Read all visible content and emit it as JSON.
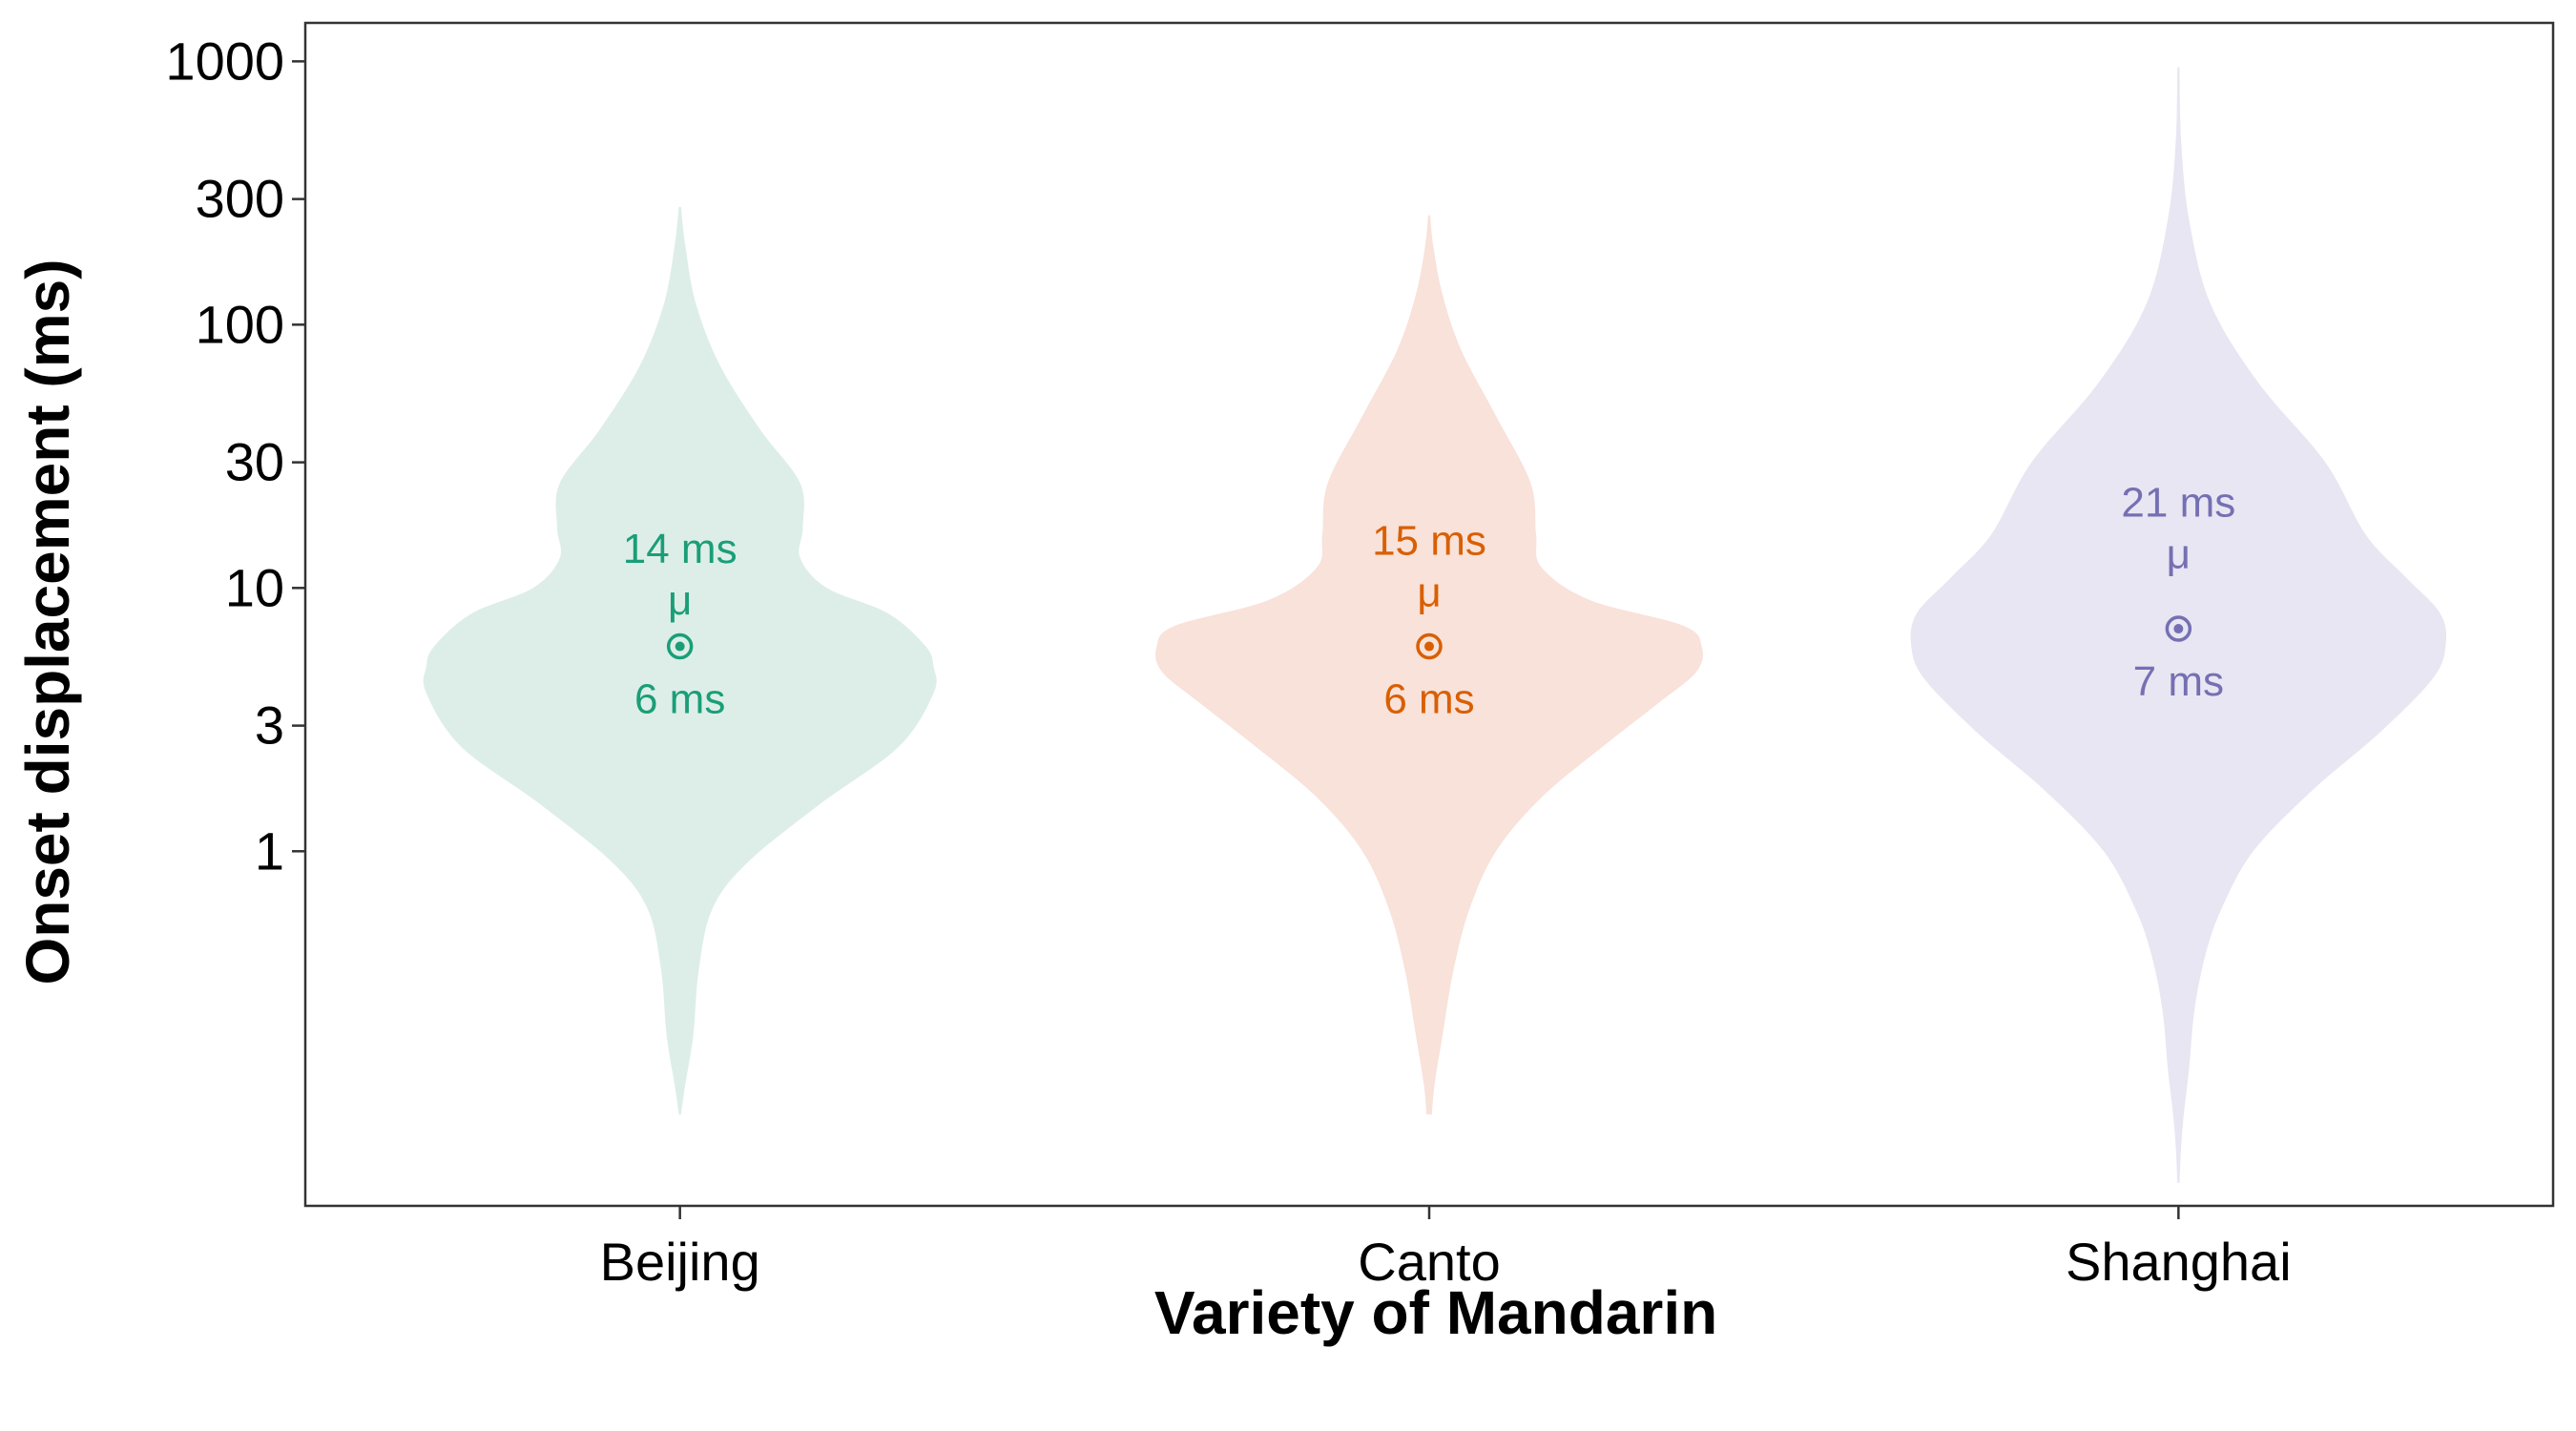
{
  "chart_data": {
    "type": "violin",
    "title": "",
    "xlabel": "Variety of Mandarin",
    "ylabel": "Onset displacement (ms)",
    "y_scale": "log",
    "ylim": [
      0.045,
      1400
    ],
    "y_ticks": [
      1,
      3,
      10,
      30,
      100,
      300,
      1000
    ],
    "y_tick_labels": [
      "1",
      "3",
      "10",
      "30",
      "100",
      "300",
      "1000"
    ],
    "grid": false,
    "legend": "none",
    "categories": [
      "Beijing",
      "Canto",
      "Shanghai"
    ],
    "series": [
      {
        "category": "Beijing",
        "color": "#1b9e77",
        "fill": "#ddeee8",
        "median": 6,
        "mean": 14,
        "median_label": "6 ms",
        "mean_label": "14 ms",
        "mean_symbol": "μ",
        "profile": [
          [
            0.1,
            0.0
          ],
          [
            0.13,
            0.02
          ],
          [
            0.2,
            0.05
          ],
          [
            0.35,
            0.07
          ],
          [
            0.6,
            0.12
          ],
          [
            0.9,
            0.25
          ],
          [
            1.5,
            0.52
          ],
          [
            2.5,
            0.82
          ],
          [
            4,
            0.95
          ],
          [
            5,
            0.95
          ],
          [
            6,
            0.92
          ],
          [
            8,
            0.78
          ],
          [
            10,
            0.55
          ],
          [
            13,
            0.45
          ],
          [
            17,
            0.46
          ],
          [
            25,
            0.45
          ],
          [
            40,
            0.3
          ],
          [
            70,
            0.15
          ],
          [
            120,
            0.06
          ],
          [
            200,
            0.02
          ],
          [
            280,
            0.0
          ]
        ]
      },
      {
        "category": "Canto",
        "color": "#d95f02",
        "fill": "#f8e2d9",
        "median": 6,
        "mean": 15,
        "median_label": "6 ms",
        "mean_label": "15 ms",
        "mean_symbol": "μ",
        "profile": [
          [
            0.1,
            0.01
          ],
          [
            0.13,
            0.02
          ],
          [
            0.2,
            0.05
          ],
          [
            0.35,
            0.09
          ],
          [
            0.6,
            0.15
          ],
          [
            1,
            0.25
          ],
          [
            1.6,
            0.42
          ],
          [
            2.5,
            0.65
          ],
          [
            3.6,
            0.85
          ],
          [
            4.8,
            1.0
          ],
          [
            6,
            1.02
          ],
          [
            7.2,
            0.95
          ],
          [
            9,
            0.6
          ],
          [
            12,
            0.42
          ],
          [
            16,
            0.4
          ],
          [
            25,
            0.38
          ],
          [
            45,
            0.25
          ],
          [
            80,
            0.12
          ],
          [
            130,
            0.05
          ],
          [
            200,
            0.015
          ],
          [
            260,
            0.0
          ]
        ]
      },
      {
        "category": "Shanghai",
        "color": "#7570b3",
        "fill": "#e8e6f2",
        "median": 7,
        "mean": 21,
        "median_label": "7 ms",
        "mean_label": "21 ms",
        "mean_symbol": "μ",
        "profile": [
          [
            0.055,
            0.0
          ],
          [
            0.075,
            0.01
          ],
          [
            0.1,
            0.02
          ],
          [
            0.15,
            0.04
          ],
          [
            0.25,
            0.06
          ],
          [
            0.4,
            0.1
          ],
          [
            0.6,
            0.16
          ],
          [
            1,
            0.28
          ],
          [
            1.7,
            0.5
          ],
          [
            2.8,
            0.75
          ],
          [
            4.5,
            0.95
          ],
          [
            6,
            1.0
          ],
          [
            8,
            0.98
          ],
          [
            11,
            0.85
          ],
          [
            16,
            0.7
          ],
          [
            30,
            0.55
          ],
          [
            60,
            0.3
          ],
          [
            120,
            0.12
          ],
          [
            250,
            0.04
          ],
          [
            500,
            0.01
          ],
          [
            950,
            0.0
          ]
        ]
      }
    ]
  }
}
